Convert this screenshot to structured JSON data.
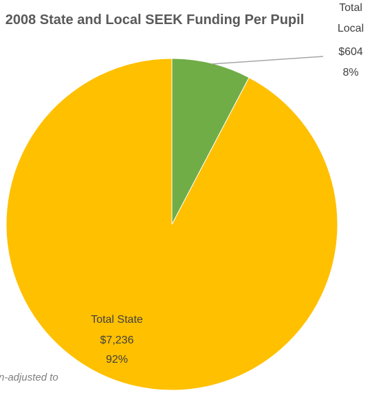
{
  "chart_data": {
    "type": "pie",
    "title": "2008 State and Local SEEK Funding Per Pupil",
    "categories": [
      "Total Local",
      "Total State"
    ],
    "values": [
      604,
      7236
    ],
    "value_labels": [
      "$604",
      "$7,236"
    ],
    "percent_labels": [
      "8%",
      "92%"
    ],
    "colors": [
      "#70ad47",
      "#ffc000"
    ],
    "note": "n-adjusted to"
  }
}
